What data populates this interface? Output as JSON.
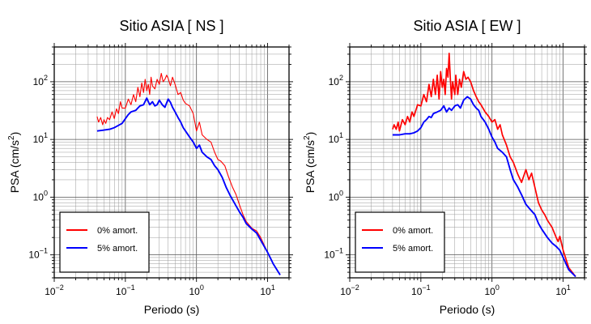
{
  "chart_data": [
    {
      "type": "line",
      "title": "Sitio ASIA [ NS ]",
      "xlabel": "Periodo (s)",
      "ylabel": {
        "base": "PSA (cm/s",
        "sup": "2",
        "tail": ")"
      },
      "xscale": "log",
      "yscale": "log",
      "xlim": [
        0.01,
        20
      ],
      "ylim": [
        0.04,
        400
      ],
      "x_ticks": [
        {
          "value": 0.01,
          "base": "10",
          "exp": "−2"
        },
        {
          "value": 0.1,
          "base": "10",
          "exp": "−1"
        },
        {
          "value": 1,
          "base": "10",
          "exp": "0"
        },
        {
          "value": 10,
          "base": "10",
          "exp": "1"
        }
      ],
      "y_ticks": [
        {
          "value": 0.1,
          "base": "10",
          "exp": "−1"
        },
        {
          "value": 1,
          "base": "10",
          "exp": "0"
        },
        {
          "value": 10,
          "base": "10",
          "exp": "1"
        },
        {
          "value": 100,
          "base": "10",
          "exp": "2"
        }
      ],
      "grid": true,
      "legend_position": "bottom-left",
      "series": [
        {
          "name": "0% amort.",
          "color": "#ff0000",
          "x": [
            0.04,
            0.042,
            0.045,
            0.048,
            0.05,
            0.053,
            0.056,
            0.06,
            0.065,
            0.07,
            0.075,
            0.08,
            0.085,
            0.09,
            0.1,
            0.11,
            0.12,
            0.13,
            0.14,
            0.15,
            0.16,
            0.17,
            0.18,
            0.19,
            0.2,
            0.21,
            0.22,
            0.23,
            0.24,
            0.26,
            0.28,
            0.3,
            0.32,
            0.34,
            0.36,
            0.38,
            0.4,
            0.43,
            0.46,
            0.5,
            0.55,
            0.6,
            0.65,
            0.7,
            0.8,
            0.9,
            1.0,
            1.1,
            1.2,
            1.4,
            1.6,
            1.8,
            2.0,
            2.2,
            2.5,
            2.8,
            3.2,
            3.6,
            4.0,
            4.5,
            5.0,
            6.0,
            7.0,
            8.0,
            10.0,
            12.0,
            15.0
          ],
          "y": [
            25,
            20,
            24,
            18,
            22,
            19,
            24,
            22,
            30,
            23,
            34,
            28,
            45,
            35,
            35,
            50,
            40,
            60,
            45,
            80,
            55,
            95,
            65,
            110,
            70,
            90,
            60,
            120,
            85,
            75,
            110,
            90,
            140,
            100,
            110,
            130,
            115,
            85,
            120,
            90,
            60,
            65,
            48,
            42,
            38,
            28,
            14,
            20,
            12,
            10,
            9,
            6,
            4.5,
            4.2,
            3.5,
            2.3,
            1.5,
            1.1,
            0.75,
            0.5,
            0.38,
            0.29,
            0.26,
            0.2,
            0.11,
            0.07,
            0.045
          ]
        },
        {
          "name": "5% amort.",
          "color": "#0000ff",
          "x": [
            0.04,
            0.05,
            0.06,
            0.07,
            0.08,
            0.09,
            0.1,
            0.11,
            0.12,
            0.13,
            0.14,
            0.15,
            0.16,
            0.18,
            0.2,
            0.22,
            0.24,
            0.26,
            0.28,
            0.3,
            0.33,
            0.36,
            0.4,
            0.43,
            0.46,
            0.5,
            0.55,
            0.6,
            0.65,
            0.7,
            0.8,
            0.9,
            1.0,
            1.1,
            1.2,
            1.4,
            1.6,
            1.8,
            2.0,
            2.3,
            2.6,
            3.0,
            3.5,
            4.0,
            4.5,
            5.0,
            6.0,
            7.0,
            8.0,
            10.0,
            12.0,
            15.0
          ],
          "y": [
            14,
            14.5,
            15,
            16,
            17.5,
            19,
            23,
            27,
            30,
            31,
            32,
            35,
            38,
            40,
            52,
            40,
            45,
            38,
            40,
            48,
            40,
            36,
            50,
            44,
            36,
            30,
            24,
            20,
            16,
            14,
            11,
            9,
            7,
            8,
            6,
            5,
            4.5,
            3.5,
            3.0,
            2.2,
            1.5,
            1.05,
            0.75,
            0.56,
            0.45,
            0.35,
            0.28,
            0.24,
            0.18,
            0.11,
            0.07,
            0.045
          ]
        }
      ]
    },
    {
      "type": "line",
      "title": "Sitio ASIA [ EW ]",
      "xlabel": "Periodo (s)",
      "ylabel": {
        "base": "PSA (cm/s",
        "sup": "2",
        "tail": ")"
      },
      "xscale": "log",
      "yscale": "log",
      "xlim": [
        0.01,
        20
      ],
      "ylim": [
        0.04,
        400
      ],
      "x_ticks": [
        {
          "value": 0.01,
          "base": "10",
          "exp": "−2"
        },
        {
          "value": 0.1,
          "base": "10",
          "exp": "−1"
        },
        {
          "value": 1,
          "base": "10",
          "exp": "0"
        },
        {
          "value": 10,
          "base": "10",
          "exp": "1"
        }
      ],
      "y_ticks": [
        {
          "value": 0.1,
          "base": "10",
          "exp": "−1"
        },
        {
          "value": 1,
          "base": "10",
          "exp": "0"
        },
        {
          "value": 10,
          "base": "10",
          "exp": "1"
        },
        {
          "value": 100,
          "base": "10",
          "exp": "2"
        }
      ],
      "grid": true,
      "legend_position": "bottom-left",
      "series": [
        {
          "name": "0% amort.",
          "color": "#ff0000",
          "x": [
            0.04,
            0.042,
            0.045,
            0.048,
            0.05,
            0.055,
            0.06,
            0.065,
            0.07,
            0.075,
            0.08,
            0.09,
            0.1,
            0.11,
            0.12,
            0.13,
            0.14,
            0.15,
            0.16,
            0.17,
            0.18,
            0.19,
            0.2,
            0.21,
            0.22,
            0.23,
            0.24,
            0.25,
            0.26,
            0.27,
            0.28,
            0.3,
            0.31,
            0.33,
            0.35,
            0.37,
            0.4,
            0.43,
            0.46,
            0.5,
            0.55,
            0.6,
            0.65,
            0.7,
            0.8,
            0.9,
            1.0,
            1.1,
            1.2,
            1.3,
            1.4,
            1.6,
            1.8,
            2.0,
            2.3,
            2.6,
            3.0,
            3.3,
            3.6,
            4.0,
            4.5,
            5.0,
            5.5,
            6.0,
            7.0,
            8.0,
            8.5,
            9.0,
            10.0,
            12.0,
            15.0
          ],
          "y": [
            15,
            18,
            15,
            20,
            14,
            22,
            18,
            25,
            20,
            30,
            25,
            40,
            38,
            60,
            45,
            90,
            55,
            110,
            60,
            130,
            50,
            150,
            80,
            110,
            60,
            170,
            120,
            310,
            110,
            50,
            100,
            60,
            130,
            60,
            110,
            80,
            150,
            110,
            120,
            100,
            70,
            55,
            45,
            40,
            30,
            25,
            20,
            22,
            15,
            18,
            12,
            8,
            5,
            4,
            2.5,
            1.8,
            3.0,
            2.0,
            2.6,
            1.5,
            0.8,
            0.6,
            0.5,
            0.4,
            0.3,
            0.2,
            0.17,
            0.21,
            0.12,
            0.06,
            0.042
          ]
        },
        {
          "name": "5% amort.",
          "color": "#0000ff",
          "x": [
            0.04,
            0.05,
            0.06,
            0.07,
            0.08,
            0.09,
            0.1,
            0.11,
            0.12,
            0.13,
            0.14,
            0.15,
            0.17,
            0.19,
            0.21,
            0.23,
            0.25,
            0.27,
            0.3,
            0.33,
            0.36,
            0.4,
            0.45,
            0.5,
            0.55,
            0.6,
            0.65,
            0.7,
            0.8,
            0.9,
            1.0,
            1.1,
            1.2,
            1.4,
            1.6,
            1.8,
            2.0,
            2.3,
            2.6,
            3.0,
            3.5,
            4.0,
            4.5,
            5.0,
            6.0,
            7.0,
            8.0,
            9.0,
            10.0,
            12.0,
            15.0
          ],
          "y": [
            12,
            12,
            12.5,
            12.5,
            13,
            14,
            16,
            20,
            22,
            25,
            24,
            28,
            30,
            32,
            38,
            30,
            35,
            32,
            38,
            40,
            35,
            48,
            55,
            50,
            40,
            35,
            32,
            25,
            20,
            15,
            11,
            9,
            7,
            6,
            5,
            3,
            2,
            1.5,
            1.1,
            0.75,
            0.6,
            0.5,
            0.35,
            0.28,
            0.2,
            0.16,
            0.14,
            0.12,
            0.09,
            0.055,
            0.042
          ]
        }
      ]
    }
  ]
}
